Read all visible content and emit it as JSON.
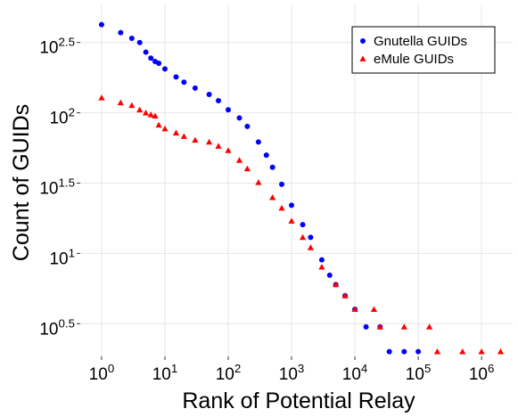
{
  "chart_data": {
    "type": "scatter",
    "x_label": "Rank of Potential Relay",
    "y_label": "Count of GUIDs",
    "log_x": true,
    "log_y": true,
    "grid": true,
    "legend": "top-right",
    "xlim": [
      0.46,
      3100000
    ],
    "ylim": [
      1.85,
      590
    ],
    "xticks": [
      {
        "value": 1,
        "label": "10^0"
      },
      {
        "value": 10,
        "label": "10^1"
      },
      {
        "value": 100,
        "label": "10^2"
      },
      {
        "value": 1000,
        "label": "10^3"
      },
      {
        "value": 10000,
        "label": "10^4"
      },
      {
        "value": 100000,
        "label": "10^5"
      },
      {
        "value": 1000000,
        "label": "10^6"
      }
    ],
    "yticks": [
      {
        "value": 3.1623,
        "label": "10^0.5"
      },
      {
        "value": 10,
        "label": "10^1"
      },
      {
        "value": 31.623,
        "label": "10^1.5"
      },
      {
        "value": 100,
        "label": "10^2"
      },
      {
        "value": 316.23,
        "label": "10^2.5"
      }
    ],
    "series": [
      {
        "name": "Gnutella GUIDs",
        "color": "#0000ff",
        "marker": "circle",
        "x": [
          1,
          2,
          3,
          4,
          5,
          6,
          7,
          8,
          10,
          15,
          20,
          30,
          50,
          70,
          100,
          150,
          200,
          300,
          400,
          500,
          700,
          1000,
          1500,
          2000,
          3000,
          4000,
          5000,
          7000,
          10000,
          15000,
          25000,
          35000,
          60000,
          100000
        ],
        "values": [
          424,
          372,
          339,
          316,
          270,
          245,
          232,
          225,
          205,
          180,
          165,
          150,
          135,
          122,
          105,
          92,
          80,
          62,
          50,
          41,
          31,
          22,
          16,
          13,
          9,
          7,
          6,
          5,
          4,
          3,
          3,
          2,
          2,
          2
        ]
      },
      {
        "name": "eMule GUIDs",
        "color": "#ff0000",
        "marker": "triangle",
        "x": [
          1,
          2,
          3,
          4,
          5,
          6,
          7,
          8,
          10,
          15,
          20,
          30,
          50,
          70,
          100,
          150,
          200,
          300,
          500,
          700,
          1000,
          1500,
          2000,
          3000,
          5000,
          7000,
          10000,
          20000,
          25000,
          60000,
          150000,
          200000,
          500000,
          1000000,
          2000000
        ],
        "values": [
          128,
          118,
          113,
          105,
          100,
          97,
          95,
          82,
          77,
          72,
          68,
          64,
          62,
          58,
          54,
          46,
          40,
          32,
          25,
          21,
          17,
          13,
          11,
          8,
          6,
          5,
          4,
          4,
          3,
          3,
          3,
          2,
          2,
          2,
          2
        ]
      }
    ]
  }
}
